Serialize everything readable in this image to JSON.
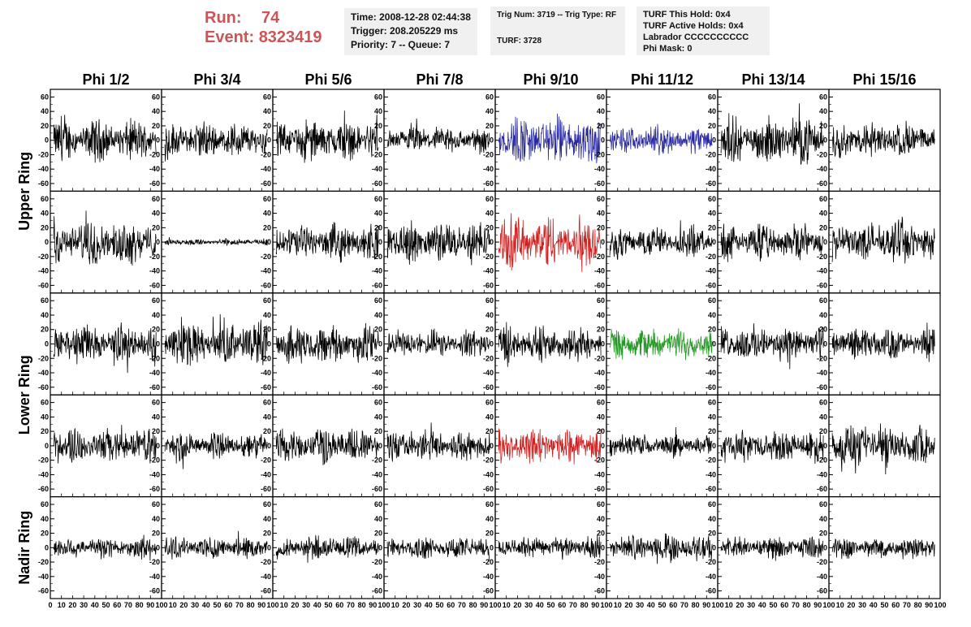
{
  "header": {
    "run_label": "Run:",
    "run_value": "74",
    "event_label": "Event:",
    "event_value": "8323419",
    "time_box": [
      "Time: 2008-12-28 02:44:38",
      "Trigger: 208.205229 ms",
      "Priority: 7 -- Queue: 7"
    ],
    "trig_box": [
      "Trig Num: 3719 -- Trig Type: RF",
      "",
      "TURF: 3728"
    ],
    "turf_box": [
      "TURF This Hold: 0x4",
      "TURF Active Holds: 0x4",
      "Labrador CCCCCCCCCC",
      "Phi Mask: 0"
    ]
  },
  "chart_data": {
    "type": "line",
    "column_titles": [
      "Phi 1/2",
      "Phi 3/4",
      "Phi 5/6",
      "Phi 7/8",
      "Phi 9/10",
      "Phi 11/12",
      "Phi 13/14",
      "Phi 15/16"
    ],
    "row_group_titles": [
      "Upper Ring",
      "Lower Ring",
      "Nadir Ring"
    ],
    "rows": 5,
    "columns": 8,
    "xlim": [
      0,
      100
    ],
    "ylim": [
      -65,
      65
    ],
    "x_ticks": [
      "0",
      "10",
      "20",
      "30",
      "40",
      "50",
      "60",
      "70",
      "80",
      "90",
      "100"
    ],
    "y_ticks": [
      "60",
      "40",
      "20",
      "0",
      "-20",
      "-40",
      "-60"
    ],
    "default_color": "#000000",
    "amplitude_estimate": [
      [
        18,
        16,
        18,
        12,
        22,
        12,
        20,
        16
      ],
      [
        20,
        3,
        16,
        18,
        24,
        14,
        16,
        18
      ],
      [
        18,
        20,
        18,
        12,
        16,
        14,
        16,
        14
      ],
      [
        16,
        12,
        16,
        14,
        16,
        10,
        14,
        18
      ],
      [
        10,
        10,
        10,
        10,
        10,
        12,
        10,
        10
      ]
    ],
    "highlighted_panels": [
      {
        "row": 0,
        "col": 4,
        "color": "#2a2aa0"
      },
      {
        "row": 0,
        "col": 5,
        "color": "#2a2aa0"
      },
      {
        "row": 1,
        "col": 4,
        "color": "#cc2222"
      },
      {
        "row": 2,
        "col": 5,
        "color": "#229922"
      },
      {
        "row": 3,
        "col": 4,
        "color": "#cc2222"
      }
    ]
  }
}
